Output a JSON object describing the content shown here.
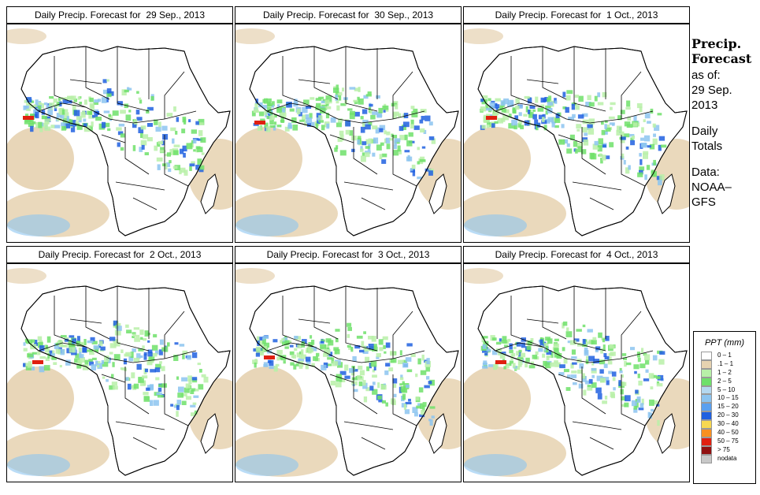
{
  "panels": [
    {
      "title": "Daily Precip. Forecast for  29 Sep., 2013",
      "day": 0
    },
    {
      "title": "Daily Precip. Forecast for  30 Sep., 2013",
      "day": 1
    },
    {
      "title": "Daily Precip. Forecast for  1 Oct., 2013",
      "day": 2
    },
    {
      "title": "Daily Precip. Forecast for  2 Oct., 2013",
      "day": 3
    },
    {
      "title": "Daily Precip. Forecast for  3 Oct., 2013",
      "day": 4
    },
    {
      "title": "Daily Precip. Forecast for  4 Oct., 2013",
      "day": 5
    }
  ],
  "sidebar": {
    "title_line1": "Precip.",
    "title_line2": "Forecast",
    "asof_label": "as of:",
    "asof_date_line1": "29 Sep.",
    "asof_date_line2": "2013",
    "totals_line1": "Daily",
    "totals_line2": "Totals",
    "data_line1": "Data:",
    "data_line2": "NOAA–",
    "data_line3": "GFS"
  },
  "legend": {
    "title": "PPT (mm)",
    "items": [
      {
        "label": "0 – 1",
        "color": "#ffffff"
      },
      {
        "label": ".1 – 1",
        "color": "#e6d2b0"
      },
      {
        "label": "1 – 2",
        "color": "#b8f0a8"
      },
      {
        "label": "2 – 5",
        "color": "#6ee06a"
      },
      {
        "label": "5 – 10",
        "color": "#b4d8f0"
      },
      {
        "label": "10 – 15",
        "color": "#8cc4f0"
      },
      {
        "label": "15 – 20",
        "color": "#5aa0f0"
      },
      {
        "label": "20 – 30",
        "color": "#2060e0"
      },
      {
        "label": "30 – 40",
        "color": "#f8d850"
      },
      {
        "label": "40 – 50",
        "color": "#f89020"
      },
      {
        "label": "50 – 75",
        "color": "#e02010"
      },
      {
        "label": "> 75",
        "color": "#901010"
      },
      {
        "label": "nodata",
        "color": "#c8c8c8"
      }
    ]
  },
  "colors": {
    "dry": "#e6d2b0",
    "light_green": "#b8f0a8",
    "green": "#6ee06a",
    "light_blue": "#8cc4f0",
    "blue": "#2060e0",
    "red": "#e02010"
  }
}
